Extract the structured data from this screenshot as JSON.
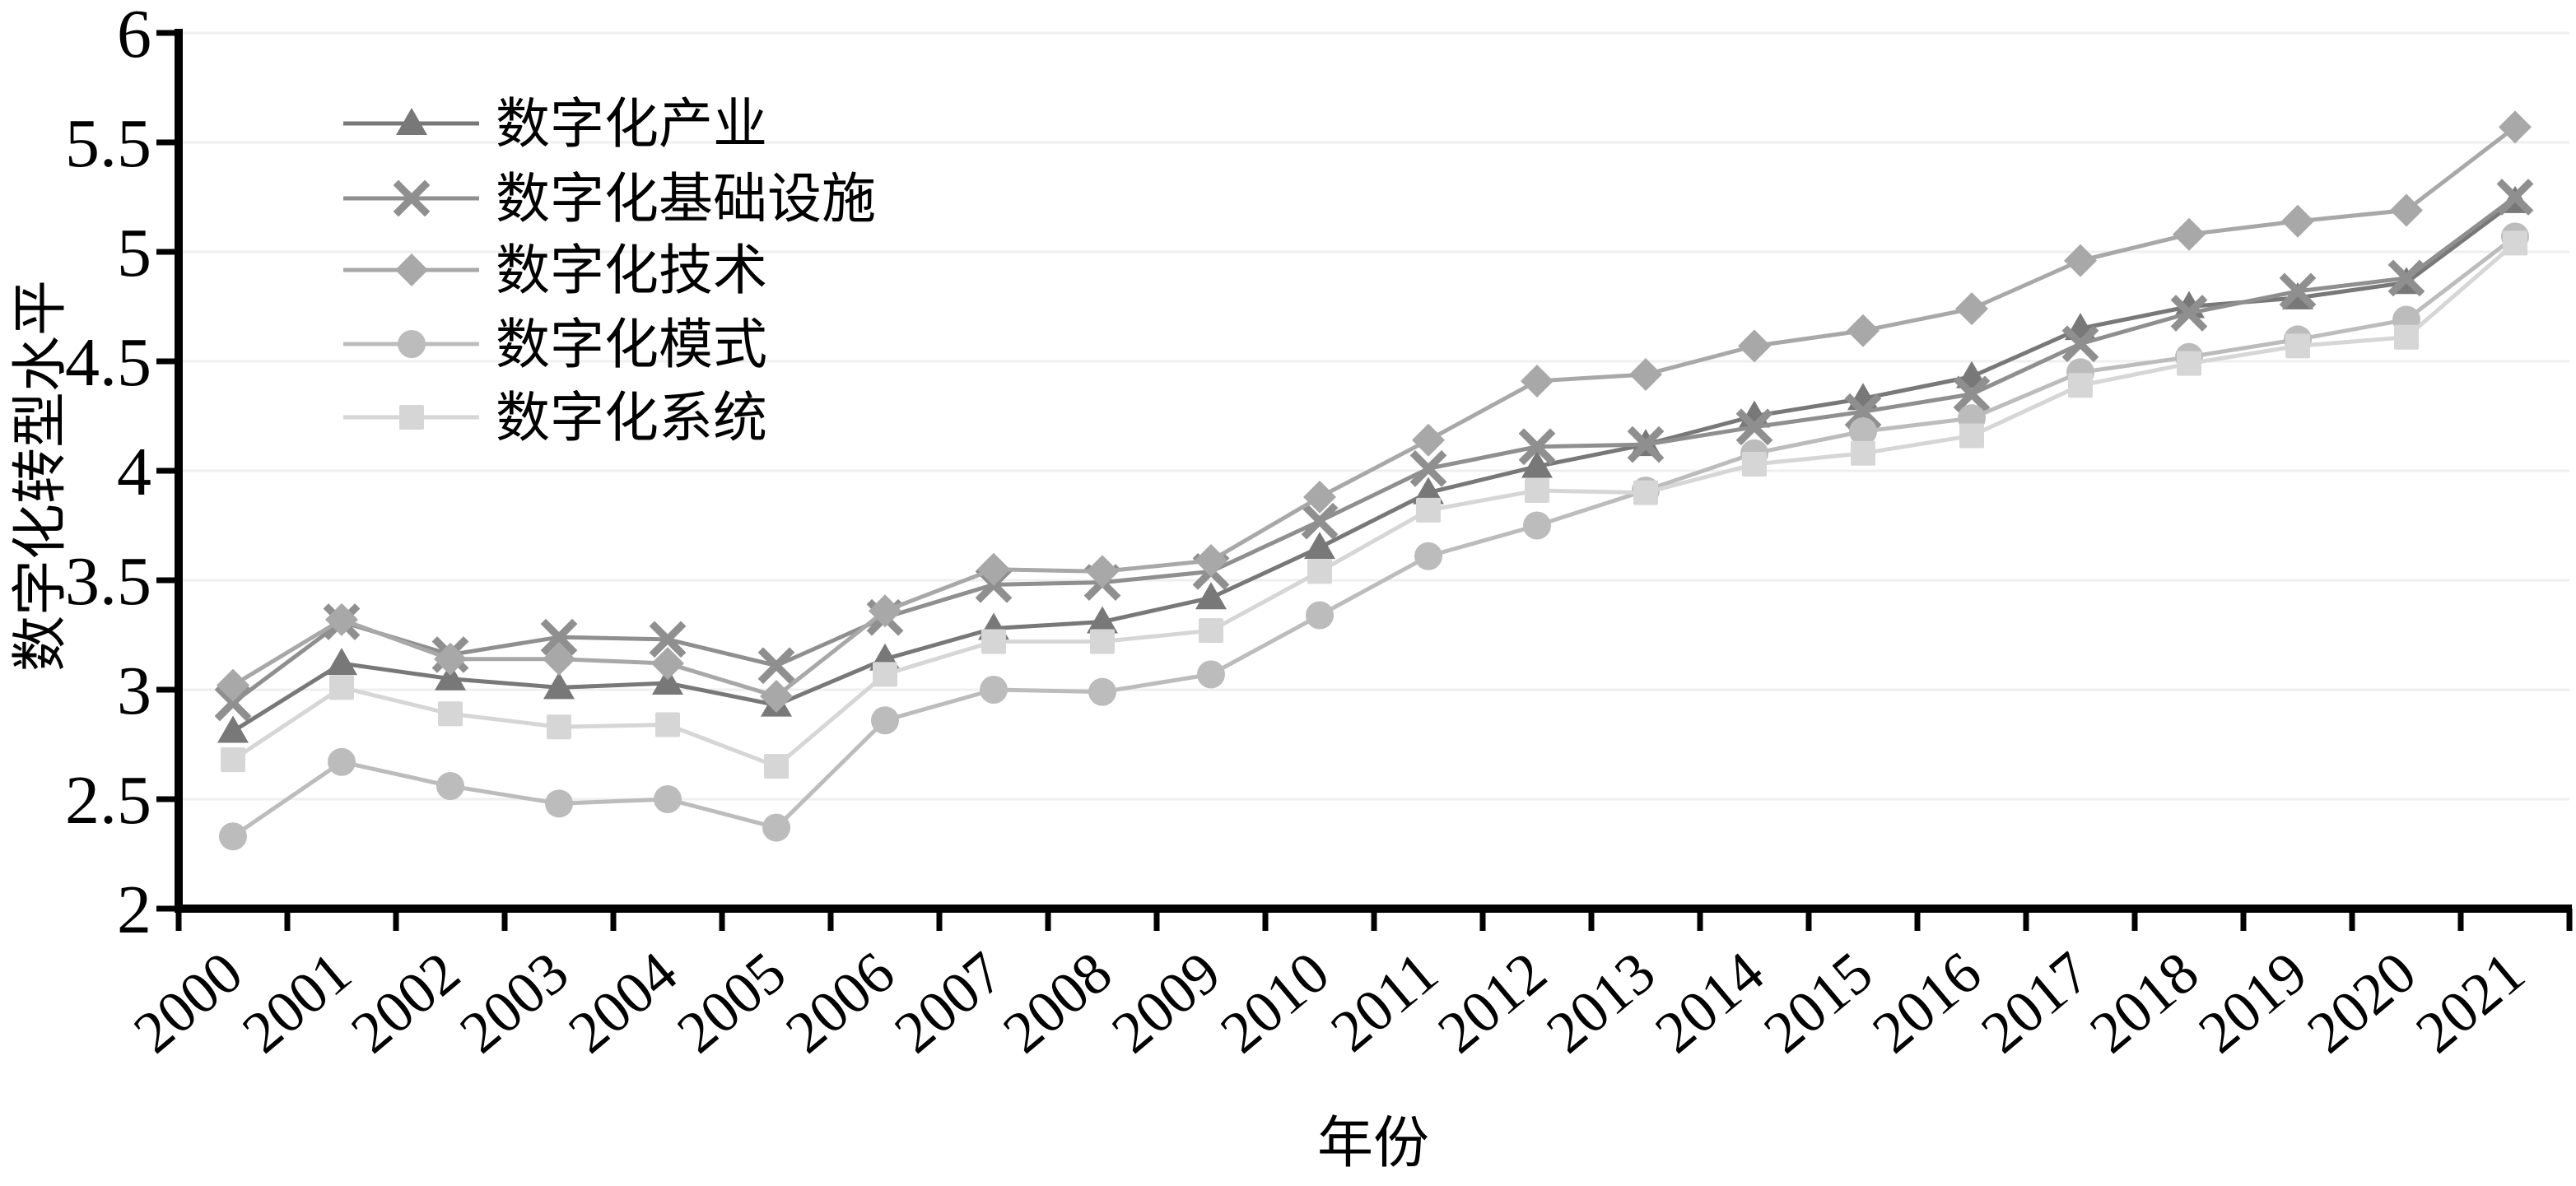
{
  "chart_data": {
    "type": "line",
    "title": "",
    "xlabel": "年份",
    "ylabel": "数字化转型水平",
    "ylim": [
      2,
      6
    ],
    "ytick_step": 0.5,
    "grid": "horizontal",
    "legend_position": "upper-left-inside",
    "background_color": "#ffffff",
    "gridline_color": "#efefef",
    "axis_color": "#000000",
    "categories": [
      "2000",
      "2001",
      "2002",
      "2003",
      "2004",
      "2005",
      "2006",
      "2007",
      "2008",
      "2009",
      "2010",
      "2011",
      "2012",
      "2013",
      "2014",
      "2015",
      "2016",
      "2017",
      "2018",
      "2019",
      "2020",
      "2021"
    ],
    "series": [
      {
        "key": "industry",
        "name": "数字化产业",
        "marker": "triangle",
        "color": "#787878",
        "values": [
          2.81,
          3.12,
          3.05,
          3.01,
          3.03,
          2.93,
          3.14,
          3.28,
          3.31,
          3.42,
          3.65,
          3.9,
          4.02,
          4.12,
          4.25,
          4.33,
          4.43,
          4.65,
          4.75,
          4.79,
          4.86,
          5.23
        ]
      },
      {
        "key": "infrastructure",
        "name": "数字化基础设施",
        "marker": "x",
        "color": "#8f8f8f",
        "values": [
          2.94,
          3.31,
          3.16,
          3.24,
          3.23,
          3.11,
          3.33,
          3.48,
          3.49,
          3.54,
          3.77,
          4.01,
          4.11,
          4.12,
          4.2,
          4.27,
          4.35,
          4.58,
          4.72,
          4.82,
          4.88,
          5.25
        ]
      },
      {
        "key": "technology",
        "name": "数字化技术",
        "marker": "diamond",
        "color": "#a8a8a8",
        "values": [
          3.02,
          3.32,
          3.14,
          3.14,
          3.12,
          2.97,
          3.36,
          3.55,
          3.54,
          3.59,
          3.88,
          4.14,
          4.41,
          4.44,
          4.57,
          4.64,
          4.74,
          4.96,
          5.08,
          5.14,
          5.19,
          5.57
        ]
      },
      {
        "key": "mode",
        "name": "数字化模式",
        "marker": "circle",
        "color": "#bcbcbc",
        "values": [
          2.33,
          2.67,
          2.56,
          2.48,
          2.5,
          2.37,
          2.86,
          3.0,
          2.99,
          3.07,
          3.34,
          3.61,
          3.75,
          3.91,
          4.08,
          4.18,
          4.24,
          4.45,
          4.52,
          4.6,
          4.69,
          5.07
        ]
      },
      {
        "key": "system",
        "name": "数字化系统",
        "marker": "square",
        "color": "#d6d6d6",
        "values": [
          2.68,
          3.01,
          2.89,
          2.83,
          2.84,
          2.65,
          3.07,
          3.22,
          3.22,
          3.27,
          3.54,
          3.82,
          3.91,
          3.9,
          4.03,
          4.08,
          4.16,
          4.39,
          4.49,
          4.57,
          4.61,
          5.04
        ]
      }
    ]
  },
  "axes": {
    "y_tick_labels": [
      "6",
      "5.5",
      "5",
      "4.5",
      "4",
      "3.5",
      "3",
      "2.5",
      "2"
    ],
    "x_tick_labels": [
      "2000",
      "2001",
      "2002",
      "2003",
      "2004",
      "2005",
      "2006",
      "2007",
      "2008",
      "2009",
      "2010",
      "2011",
      "2012",
      "2013",
      "2014",
      "2015",
      "2016",
      "2017",
      "2018",
      "2019",
      "2020",
      "2021"
    ]
  }
}
